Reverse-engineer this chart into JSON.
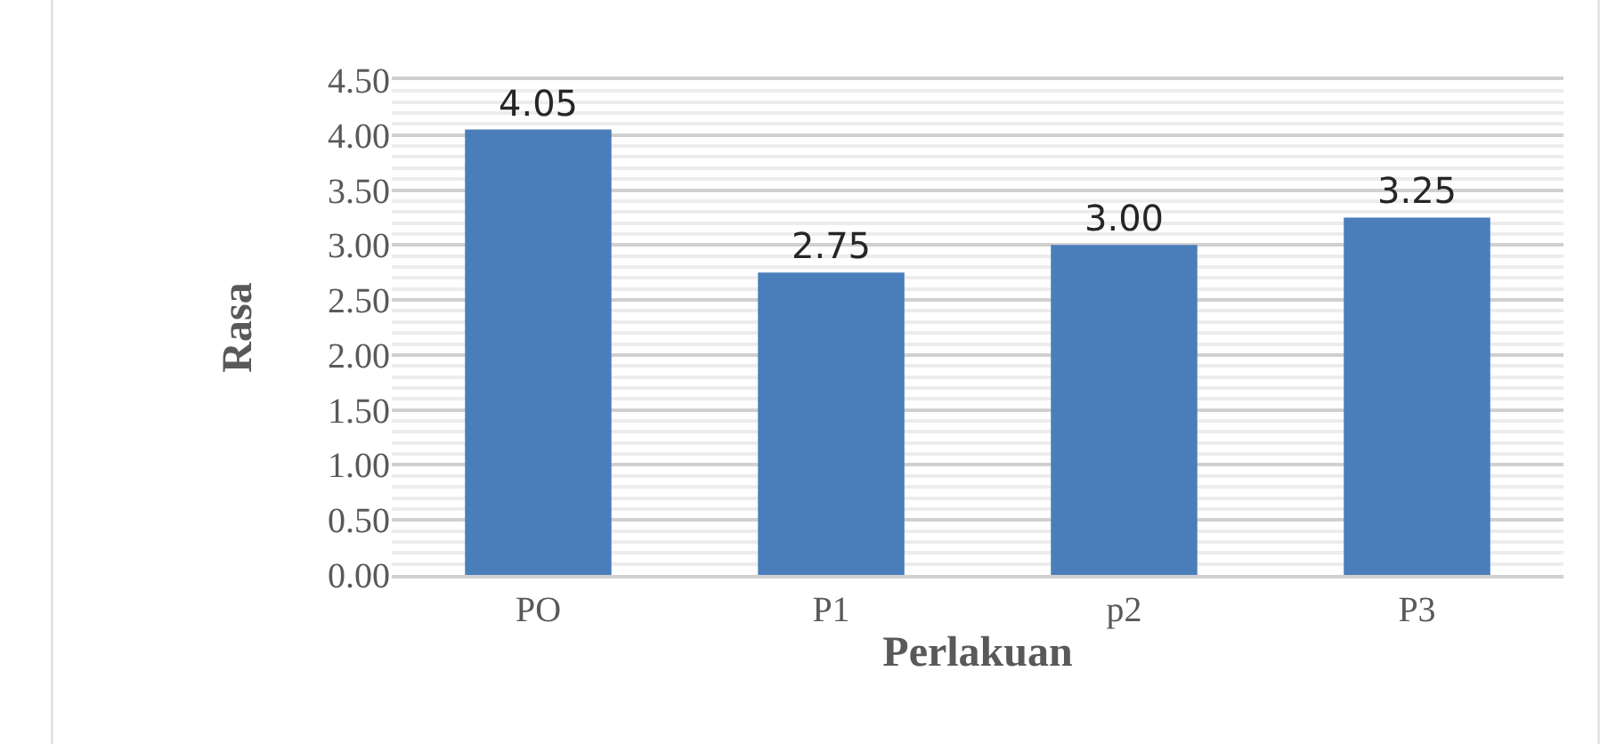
{
  "chart_data": {
    "type": "bar",
    "xlabel": "Perlakuan",
    "ylabel": "Rasa",
    "categories": [
      "PO",
      "P1",
      "p2",
      "P3"
    ],
    "values": [
      4.05,
      2.75,
      3.0,
      3.25
    ],
    "color": "#4a7ebb",
    "ylim": [
      0,
      4.5
    ],
    "yticks": [
      "0.00",
      "0.50",
      "1.00",
      "1.50",
      "2.00",
      "2.50",
      "3.00",
      "3.50",
      "4.00",
      "4.50"
    ],
    "value_labels": [
      "4.05",
      "2.75",
      "3.00",
      "3.25"
    ],
    "grid": "y",
    "legend": false
  }
}
